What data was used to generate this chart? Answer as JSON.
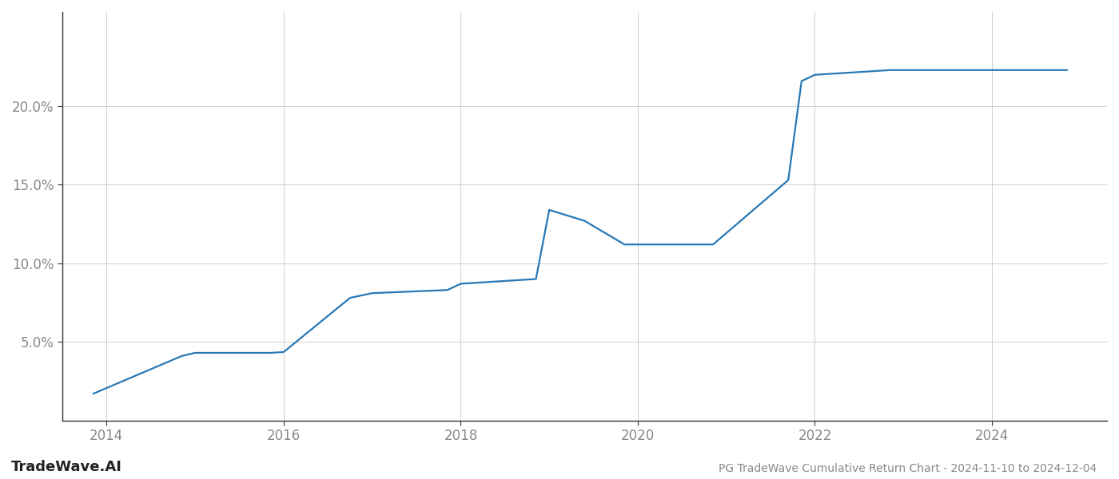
{
  "title": "PG TradeWave Cumulative Return Chart - 2024-11-10 to 2024-12-04",
  "watermark": "TradeWave.AI",
  "line_color": "#2878b5",
  "background_color": "#ffffff",
  "grid_color": "#c8c8c8",
  "x_values": [
    2013.85,
    2014.85,
    2015.0,
    2015.85,
    2016.0,
    2016.75,
    2017.0,
    2017.85,
    2018.0,
    2018.85,
    2019.0,
    2019.4,
    2019.85,
    2020.0,
    2020.85,
    2021.7,
    2021.85,
    2022.0,
    2022.85,
    2023.0,
    2024.0,
    2024.85
  ],
  "y_values": [
    1.7,
    4.1,
    4.3,
    4.3,
    4.35,
    7.8,
    8.1,
    8.3,
    8.7,
    9.0,
    13.4,
    12.7,
    11.2,
    11.2,
    11.2,
    15.3,
    21.6,
    22.0,
    22.3,
    22.3,
    22.3,
    22.3
  ],
  "xlim": [
    2013.5,
    2025.3
  ],
  "ylim": [
    0,
    26
  ],
  "yticks": [
    5.0,
    10.0,
    15.0,
    20.0
  ],
  "ytick_labels": [
    "5.0%",
    "10.0%",
    "15.0%",
    "20.0%"
  ],
  "xticks": [
    2014,
    2016,
    2018,
    2020,
    2022,
    2024
  ],
  "tick_color": "#888888",
  "axis_color": "#333333",
  "title_fontsize": 10,
  "watermark_fontsize": 13,
  "line_width": 1.6
}
